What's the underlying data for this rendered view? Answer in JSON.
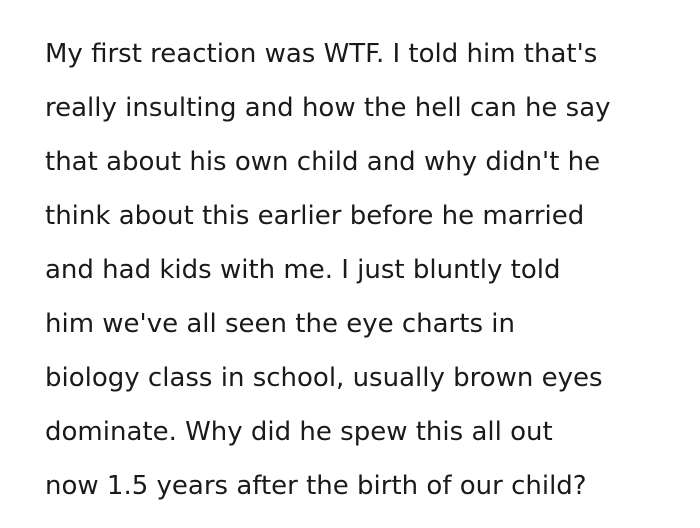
{
  "paragraph": {
    "lines": [
      "My first reaction was WTF. I told him that's",
      "really insulting and how the hell can he say",
      "that about his own child and why didn't he",
      "think about this earlier before he married",
      "and had kids with me. I just bluntly told",
      "him we've all seen the eye charts in",
      "biology class in school, usually brown eyes",
      "dominate. Why did he spew this all out",
      "now 1.5 years after the birth of our child?"
    ]
  }
}
